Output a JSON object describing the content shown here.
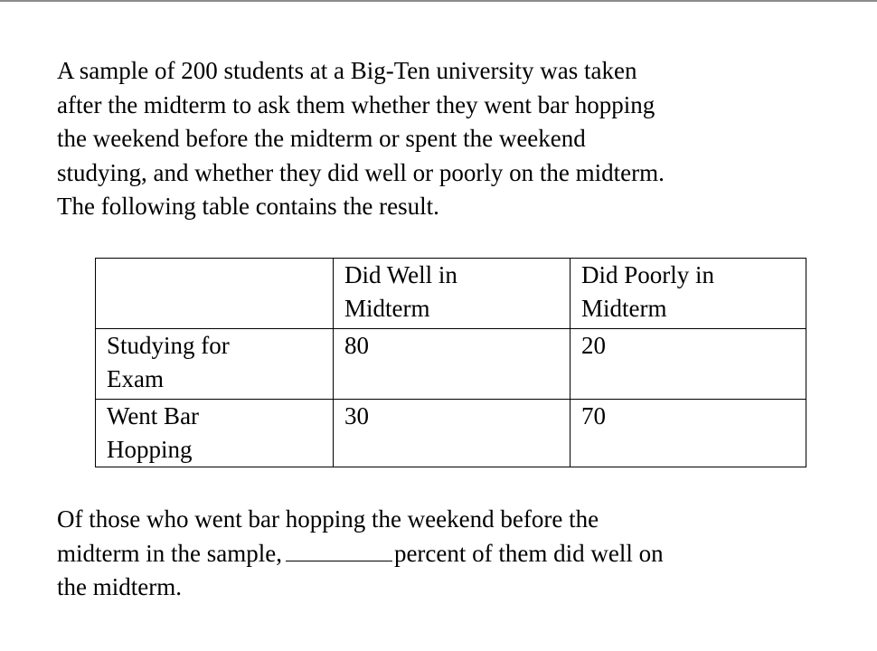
{
  "intro": {
    "lines": [
      "A sample of 200 students at a Big-Ten university was taken",
      "after the midterm to ask them whether they went bar hopping",
      "the weekend before the midterm or spent the weekend",
      "studying, and whether they did well or poorly on the midterm.",
      "The following table contains the result."
    ]
  },
  "table": {
    "header": {
      "corner": "",
      "col1": [
        "Did Well in",
        "Midterm"
      ],
      "col2": [
        "Did Poorly in",
        "Midterm"
      ]
    },
    "rows": [
      {
        "label": [
          "Studying for",
          "Exam"
        ],
        "well": "80",
        "poorly": "20"
      },
      {
        "label": [
          "Went Bar",
          "Hopping"
        ],
        "well": "30",
        "poorly": "70"
      }
    ]
  },
  "question": {
    "line1": "Of those who went bar hopping the weekend before the",
    "line2_before": "midterm in the sample,",
    "line2_after": "percent of them did well on",
    "line3": "the midterm."
  }
}
